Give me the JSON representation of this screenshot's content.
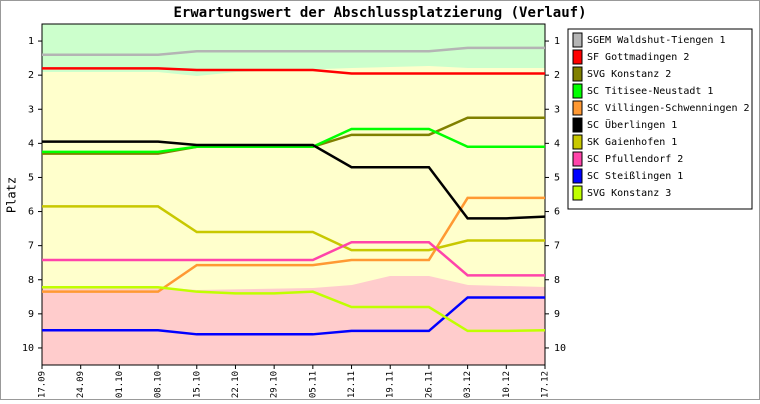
{
  "chart_data": {
    "type": "line",
    "title": "Erwartungswert der Abschlussplatzierung (Verlauf)",
    "y_label": "Platz",
    "categories": [
      "17.09",
      "24.09",
      "01.10",
      "08.10",
      "15.10",
      "22.10",
      "29.10",
      "05.11",
      "12.11",
      "19.11",
      "26.11",
      "03.12",
      "10.12",
      "17.12"
    ],
    "ylim": [
      0.5,
      10.5
    ],
    "y_reversed": true,
    "yticks": [
      1,
      2,
      3,
      4,
      5,
      6,
      7,
      8,
      9,
      10
    ],
    "series": [
      {
        "name": "SGEM Waldshut-Tiengen 1",
        "color": "#b4b4b4",
        "values": [
          1.4,
          1.4,
          1.4,
          1.4,
          1.3,
          1.3,
          1.3,
          1.3,
          1.3,
          1.3,
          1.3,
          1.2,
          1.2,
          1.2
        ]
      },
      {
        "name": "SF Gottmadingen 2",
        "color": "#ff0000",
        "values": [
          1.8,
          1.8,
          1.8,
          1.8,
          1.85,
          1.85,
          1.85,
          1.85,
          1.95,
          1.95,
          1.95,
          1.95,
          1.95,
          1.95
        ]
      },
      {
        "name": "SVG Konstanz 2",
        "color": "#808000",
        "values": [
          4.3,
          4.3,
          4.3,
          4.3,
          4.1,
          4.1,
          4.1,
          4.1,
          3.75,
          3.75,
          3.75,
          3.25,
          3.25,
          3.25
        ]
      },
      {
        "name": "SC Titisee-Neustadt 1",
        "color": "#00ff00",
        "values": [
          4.25,
          4.25,
          4.25,
          4.25,
          4.1,
          4.1,
          4.1,
          4.1,
          3.58,
          3.58,
          3.58,
          4.1,
          4.1,
          4.1
        ]
      },
      {
        "name": "SC Villingen-Schwenningen 2",
        "color": "#ff9933",
        "values": [
          8.35,
          8.35,
          8.35,
          8.35,
          7.57,
          7.57,
          7.57,
          7.57,
          7.42,
          7.42,
          7.42,
          5.6,
          5.6,
          5.6
        ]
      },
      {
        "name": "SC Überlingen 1",
        "color": "#000000",
        "values": [
          3.95,
          3.95,
          3.95,
          3.95,
          4.05,
          4.05,
          4.05,
          4.05,
          4.7,
          4.7,
          4.7,
          6.2,
          6.2,
          6.15
        ]
      },
      {
        "name": "SK Gaienhofen 1",
        "color": "#c8c800",
        "values": [
          5.85,
          5.85,
          5.85,
          5.85,
          6.6,
          6.6,
          6.6,
          6.6,
          7.13,
          7.13,
          7.13,
          6.85,
          6.85,
          6.85
        ]
      },
      {
        "name": "SC Pfullendorf 2",
        "color": "#ff44aa",
        "values": [
          7.42,
          7.42,
          7.42,
          7.42,
          7.42,
          7.42,
          7.42,
          7.42,
          6.9,
          6.9,
          6.9,
          7.87,
          7.87,
          7.87
        ]
      },
      {
        "name": "SC Steißlingen 1",
        "color": "#0000ff",
        "values": [
          9.48,
          9.48,
          9.48,
          9.48,
          9.6,
          9.6,
          9.6,
          9.6,
          9.5,
          9.5,
          9.5,
          8.52,
          8.52,
          8.52
        ]
      },
      {
        "name": "SVG Konstanz 3",
        "color": "#c0ff00",
        "values": [
          8.22,
          8.22,
          8.22,
          8.22,
          8.35,
          8.4,
          8.4,
          8.35,
          8.8,
          8.8,
          8.8,
          9.5,
          9.5,
          9.48
        ]
      }
    ]
  }
}
